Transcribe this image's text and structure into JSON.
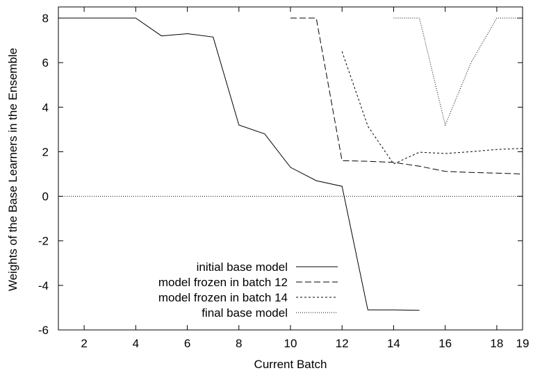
{
  "chart_data": {
    "type": "line",
    "title": "",
    "xlabel": "Current Batch",
    "ylabel": "Weights of the Base Learners in the Ensemble",
    "xlim": [
      1,
      19
    ],
    "ylim": [
      -6,
      8.5
    ],
    "xticks": [
      2,
      4,
      6,
      8,
      10,
      12,
      14,
      16,
      18,
      19
    ],
    "yticks": [
      -6,
      -4,
      -2,
      0,
      2,
      4,
      6,
      8
    ],
    "grid": false,
    "legend_position": "bottom-left",
    "zero_line": true,
    "series": [
      {
        "name": "initial base model",
        "style": "solid",
        "x": [
          1,
          2,
          3,
          4,
          5,
          6,
          7,
          8,
          9,
          10,
          11,
          12,
          13,
          14,
          15
        ],
        "y": [
          8,
          8,
          8,
          8,
          7.2,
          7.3,
          7.15,
          3.2,
          2.8,
          1.3,
          0.7,
          0.45,
          -5.1,
          -5.1,
          -5.12
        ]
      },
      {
        "name": "model frozen in batch 12",
        "style": "dashed",
        "x": [
          10,
          11,
          12,
          13,
          14,
          15,
          16,
          17,
          18,
          19
        ],
        "y": [
          8,
          8,
          1.6,
          1.57,
          1.52,
          1.35,
          1.12,
          1.07,
          1.04,
          1.0
        ]
      },
      {
        "name": "model frozen in batch 14",
        "style": "dotted-dashed",
        "x": [
          12,
          13,
          14,
          15,
          16,
          17,
          18,
          19
        ],
        "y": [
          6.5,
          3.15,
          1.45,
          1.98,
          1.92,
          2.0,
          2.1,
          2.15
        ]
      },
      {
        "name": "final base model",
        "style": "dotted",
        "x": [
          14,
          15,
          16,
          17,
          18,
          19
        ],
        "y": [
          8,
          8,
          3.2,
          6,
          8,
          8
        ]
      }
    ]
  }
}
